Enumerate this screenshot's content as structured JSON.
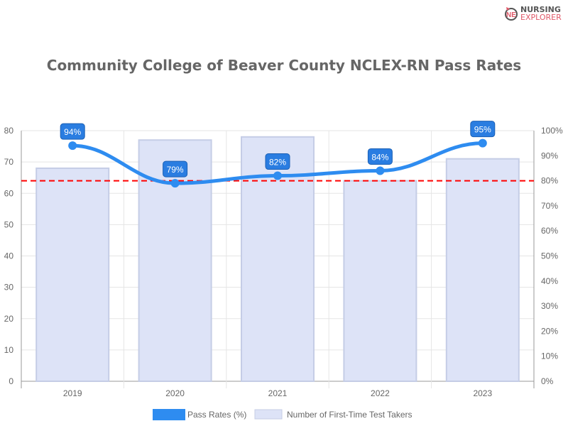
{
  "logo": {
    "line1": "NURSING",
    "line2": "EXPLORER"
  },
  "chart_data": {
    "type": "bar+line",
    "title": "Community College of Beaver County NCLEX-RN Pass Rates",
    "categories": [
      "2019",
      "2020",
      "2021",
      "2022",
      "2023"
    ],
    "series": [
      {
        "name": "Pass Rates (%)",
        "type": "line",
        "axis": "right",
        "values": [
          94,
          79,
          82,
          84,
          95
        ],
        "labels": [
          "94%",
          "79%",
          "82%",
          "84%",
          "95%"
        ],
        "color": "#2e8cf0"
      },
      {
        "name": "Number of First-Time Test Takers",
        "type": "bar",
        "axis": "left",
        "values": [
          68,
          77,
          78,
          64,
          71
        ],
        "color": "#dde3f7",
        "border": "#c5cde6"
      }
    ],
    "reference_line": {
      "axis": "right",
      "value": 80,
      "color": "#ff0000",
      "style": "dashed"
    },
    "left_axis": {
      "ylim": [
        0,
        80
      ],
      "ticks": [
        "0",
        "10",
        "20",
        "30",
        "40",
        "50",
        "60",
        "70",
        "80"
      ]
    },
    "right_axis": {
      "ylim": [
        0,
        100
      ],
      "ticks": [
        "0%",
        "10%",
        "20%",
        "30%",
        "40%",
        "50%",
        "60%",
        "70%",
        "80%",
        "90%",
        "100%"
      ]
    },
    "grid": true,
    "legend": "bottom"
  }
}
